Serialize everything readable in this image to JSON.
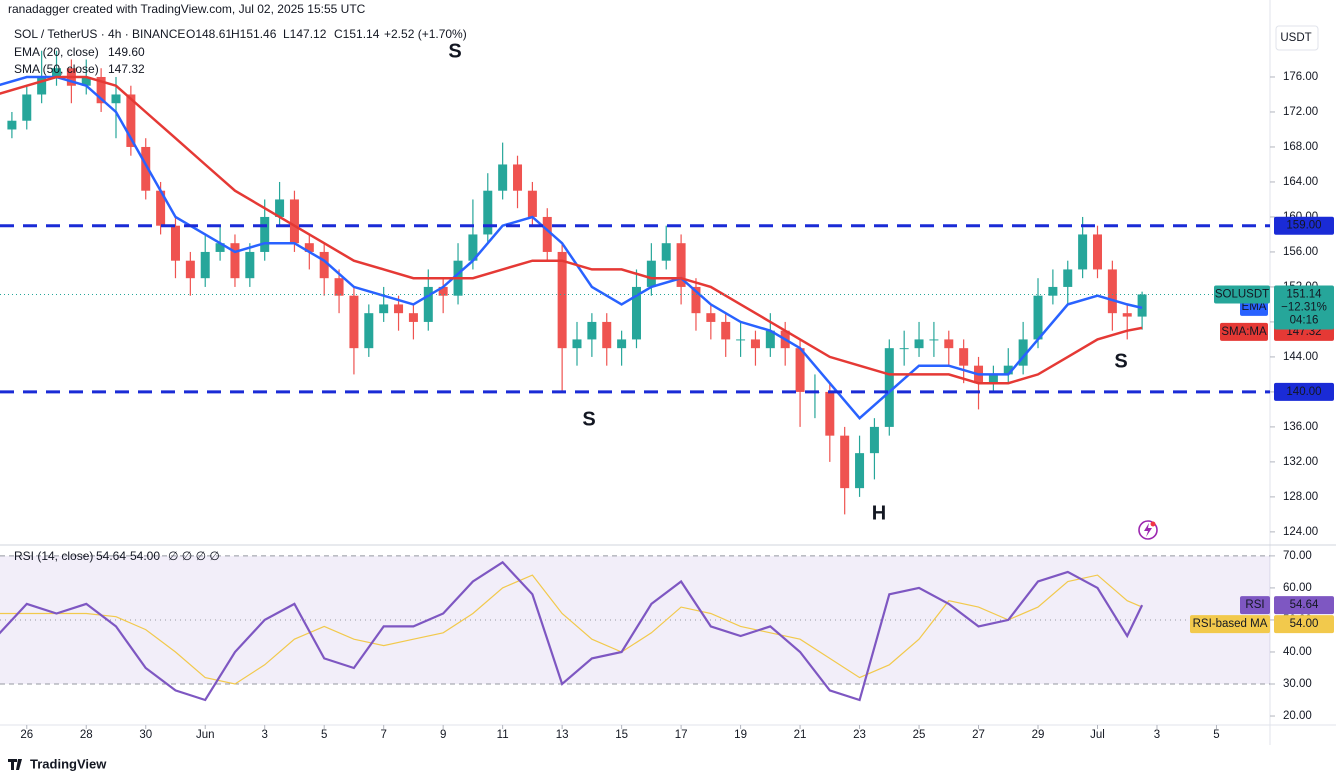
{
  "header": {
    "credit": "ranadagger created with TradingView.com, Jul 02, 2025 15:55 UTC",
    "symbol": "SOL / TetherUS · 4h · BINANCE",
    "ohlc": [
      "O148.61",
      "H151.46",
      "L147.12",
      "C151.14",
      "+2.52 (+1.70%)"
    ],
    "currency": "USDT"
  },
  "chart_data": [
    {
      "type": "candlestick",
      "x": [
        -0.5,
        0,
        0.5,
        1,
        1.5,
        2,
        2.5,
        3,
        3.5,
        4,
        4.5,
        5,
        5.5,
        6,
        6.5,
        7,
        7.5,
        8,
        8.5,
        9,
        9.5,
        10,
        10.5,
        11,
        11.5,
        12,
        12.5,
        13,
        13.5,
        14,
        14.5,
        15,
        15.5,
        16,
        16.5,
        17,
        17.5,
        18,
        18.5,
        19,
        19.5,
        20,
        20.5,
        21,
        21.5,
        22,
        22.5,
        23,
        23.5,
        24,
        24.5,
        25,
        25.5,
        26,
        26.5,
        27,
        27.5,
        28,
        28.5,
        29,
        29.5,
        30,
        30.5,
        31,
        31.5,
        32,
        32.5,
        33,
        33.5,
        34,
        34.5,
        35,
        35.5,
        36,
        36.5,
        37,
        37.5
      ],
      "open": [
        170,
        171,
        174,
        176,
        177,
        175,
        176,
        173,
        174,
        168,
        163,
        159,
        155,
        153,
        156,
        157,
        153,
        156,
        160,
        162,
        157,
        156,
        153,
        151,
        145,
        149,
        150,
        149,
        148,
        152,
        151,
        155,
        158,
        163,
        166,
        163,
        160,
        156,
        145,
        146,
        148,
        145,
        146,
        152,
        155,
        157,
        152,
        149,
        148,
        146,
        146,
        145,
        147,
        145,
        140,
        140,
        135,
        129,
        133,
        136,
        145,
        145,
        146,
        146,
        145,
        143,
        141,
        142,
        143,
        146,
        151,
        152,
        154,
        158,
        154,
        149,
        148.61
      ],
      "high": [
        172,
        175,
        179,
        179,
        178,
        178,
        177,
        176,
        175,
        169,
        164,
        160,
        156,
        158,
        159,
        158,
        157,
        162,
        164,
        163,
        158,
        157,
        154,
        152,
        150,
        152,
        151,
        150,
        154,
        153,
        157,
        162,
        165,
        168.5,
        167,
        164,
        161,
        157,
        148,
        149,
        149,
        147,
        154,
        157,
        159,
        158,
        153,
        150,
        149,
        148,
        147,
        149,
        148,
        146,
        142,
        141,
        136,
        135,
        137,
        146,
        147,
        148,
        148,
        147,
        146,
        144,
        143,
        145,
        148,
        153,
        154,
        155,
        160,
        159,
        155,
        150,
        151.46
      ],
      "low": [
        169,
        170,
        173,
        175,
        173,
        174,
        172,
        169,
        167,
        162,
        158,
        153,
        151,
        152,
        155,
        152,
        152,
        155,
        159,
        156,
        154,
        151,
        149,
        142,
        144,
        148,
        147,
        146,
        147,
        149,
        150,
        154,
        157,
        162,
        161,
        159,
        155,
        140,
        143,
        144,
        143,
        143,
        145,
        151,
        154,
        150,
        147,
        146,
        144,
        144,
        143,
        144,
        143,
        136,
        137,
        132,
        126,
        128,
        130,
        135,
        143,
        144,
        144,
        143,
        141,
        138,
        140,
        141,
        142,
        145,
        150,
        150,
        153,
        153,
        147,
        146,
        147.12
      ],
      "close": [
        171,
        174,
        176,
        177,
        175,
        176,
        173,
        174,
        168,
        163,
        159,
        155,
        153,
        156,
        157,
        153,
        156,
        160,
        162,
        157,
        156,
        153,
        151,
        145,
        149,
        150,
        149,
        148,
        152,
        151,
        155,
        158,
        163,
        166,
        163,
        160,
        156,
        145,
        146,
        148,
        145,
        146,
        152,
        155,
        157,
        152,
        149,
        148,
        146,
        146,
        145,
        147,
        145,
        140,
        140,
        135,
        129,
        133,
        136,
        145,
        145,
        146,
        146,
        145,
        143,
        141,
        142,
        143,
        146,
        151,
        152,
        154,
        158,
        154,
        149,
        148.61,
        151.14
      ],
      "up_color": "#26a69a",
      "down_color": "#ef5350",
      "xlim": [
        -0.9,
        41.8
      ],
      "xticks": [
        {
          "value": 0,
          "label": "26"
        },
        {
          "value": 2,
          "label": "28"
        },
        {
          "value": 4,
          "label": "30"
        },
        {
          "value": 6,
          "label": "Jun"
        },
        {
          "value": 8,
          "label": "3"
        },
        {
          "value": 10,
          "label": "5"
        },
        {
          "value": 12,
          "label": "7"
        },
        {
          "value": 14,
          "label": "9"
        },
        {
          "value": 16,
          "label": "11"
        },
        {
          "value": 18,
          "label": "13"
        },
        {
          "value": 20,
          "label": "15"
        },
        {
          "value": 22,
          "label": "17"
        },
        {
          "value": 24,
          "label": "19"
        },
        {
          "value": 26,
          "label": "21"
        },
        {
          "value": 28,
          "label": "23"
        },
        {
          "value": 30,
          "label": "25"
        },
        {
          "value": 32,
          "label": "27"
        },
        {
          "value": 34,
          "label": "29"
        },
        {
          "value": 36,
          "label": "Jul"
        },
        {
          "value": 38,
          "label": "3"
        },
        {
          "value": 40,
          "label": "5"
        }
      ],
      "ylim": [
        122.5,
        184.8
      ],
      "yticks": [
        {
          "value": 124,
          "label": "124.00"
        },
        {
          "value": 128,
          "label": "128.00"
        },
        {
          "value": 132,
          "label": "132.00"
        },
        {
          "value": 136,
          "label": "136.00"
        },
        {
          "value": 140,
          "label": "140.00"
        },
        {
          "value": 144,
          "label": "144.00"
        },
        {
          "value": 148,
          "label": "148.00"
        },
        {
          "value": 152,
          "label": "152.00"
        },
        {
          "value": 156,
          "label": "156.00"
        },
        {
          "value": 160,
          "label": "160.00"
        },
        {
          "value": 164,
          "label": "164.00"
        },
        {
          "value": 168,
          "label": "168.00"
        },
        {
          "value": 172,
          "label": "172.00"
        },
        {
          "value": 176,
          "label": "176.00"
        }
      ],
      "series": [
        {
          "name": "EMA (20, close)",
          "tag": "EMA",
          "legend_value": "149.60",
          "color": "#2962ff",
          "x": [
            -1,
            0,
            1,
            2,
            3,
            4,
            5,
            6,
            7,
            8,
            9,
            10,
            11,
            12,
            13,
            14,
            15,
            16,
            17,
            18,
            19,
            20,
            21,
            22,
            23,
            24,
            25,
            26,
            27,
            28,
            29,
            30,
            31,
            32,
            33,
            34,
            35,
            36,
            37,
            37.5
          ],
          "values": [
            175,
            176,
            176,
            175,
            172,
            166,
            160,
            158,
            156,
            157,
            157,
            155,
            152,
            151,
            150,
            152,
            155,
            159,
            160,
            157,
            152,
            150,
            152,
            153,
            150,
            148,
            147,
            145,
            141,
            137,
            140,
            143,
            143,
            142,
            142,
            146,
            150,
            151,
            150,
            149.6
          ]
        },
        {
          "name": "SMA (50, close)",
          "tag": "SMA:MA",
          "legend_value": "147.32",
          "color": "#e53935",
          "x": [
            -1,
            0,
            1,
            2,
            3,
            4,
            5,
            6,
            7,
            8,
            9,
            10,
            11,
            12,
            13,
            14,
            15,
            16,
            17,
            18,
            19,
            20,
            21,
            22,
            23,
            24,
            25,
            26,
            27,
            28,
            29,
            30,
            31,
            32,
            33,
            34,
            35,
            36,
            37,
            37.5
          ],
          "values": [
            174,
            175,
            176,
            176,
            175,
            172,
            169,
            166,
            163,
            161,
            159,
            157,
            155,
            154,
            153,
            153,
            153,
            154,
            155,
            155,
            154,
            154,
            153,
            153,
            152,
            150,
            148,
            146,
            144,
            143,
            142,
            142,
            142,
            141,
            141,
            142,
            144,
            146,
            147,
            147.32
          ]
        }
      ],
      "levels": [
        {
          "value": 159,
          "label": "159.00"
        },
        {
          "value": 140,
          "label": "140.00"
        }
      ],
      "level_color": "#1a2bd6",
      "annotations": [
        "S",
        "S",
        "H",
        "S"
      ],
      "last_price": {
        "name": "SOLUSDT",
        "label": "151.14",
        "change": "−12.31%",
        "countdown": "04:16"
      }
    },
    {
      "type": "line",
      "title": "RSI (14, close)",
      "legend_extra": "∅ ∅ ∅ ∅",
      "x": [
        -1,
        0,
        1,
        2,
        3,
        4,
        5,
        6,
        7,
        8,
        9,
        10,
        11,
        12,
        13,
        14,
        15,
        16,
        17,
        18,
        19,
        20,
        21,
        22,
        23,
        24,
        25,
        26,
        27,
        28,
        29,
        30,
        31,
        32,
        33,
        34,
        35,
        36,
        37,
        37.5
      ],
      "series": [
        {
          "name": "RSI",
          "legend_value": "54.64",
          "color": "#7e57c2",
          "values": [
            45,
            55,
            52,
            55,
            48,
            35,
            28,
            25,
            40,
            50,
            55,
            38,
            35,
            48,
            48,
            52,
            62,
            68,
            58,
            30,
            38,
            40,
            55,
            62,
            48,
            45,
            48,
            40,
            28,
            25,
            58,
            60,
            55,
            48,
            50,
            62,
            65,
            60,
            45,
            54.64
          ]
        },
        {
          "name": "RSI-based MA",
          "legend_value": "54.00",
          "color": "#f2c94c",
          "values": [
            52,
            52,
            52,
            52,
            51,
            47,
            40,
            32,
            30,
            36,
            44,
            48,
            44,
            42,
            44,
            46,
            52,
            60,
            64,
            52,
            44,
            40,
            46,
            54,
            52,
            48,
            46,
            44,
            38,
            32,
            36,
            44,
            56,
            54,
            50,
            54,
            62,
            64,
            56,
            54
          ]
        }
      ],
      "ylim": [
        17.2,
        73.4
      ],
      "yticks": [
        {
          "value": 20,
          "label": "20.00"
        },
        {
          "value": 30,
          "label": "30.00"
        },
        {
          "value": 40,
          "label": "40.00"
        },
        {
          "value": 50,
          "label": "50.00"
        },
        {
          "value": 60,
          "label": "60.00"
        },
        {
          "value": 70,
          "label": "70.00"
        }
      ],
      "levels": [
        70,
        50,
        30
      ]
    }
  ],
  "footer": {
    "brand": "TradingView"
  }
}
